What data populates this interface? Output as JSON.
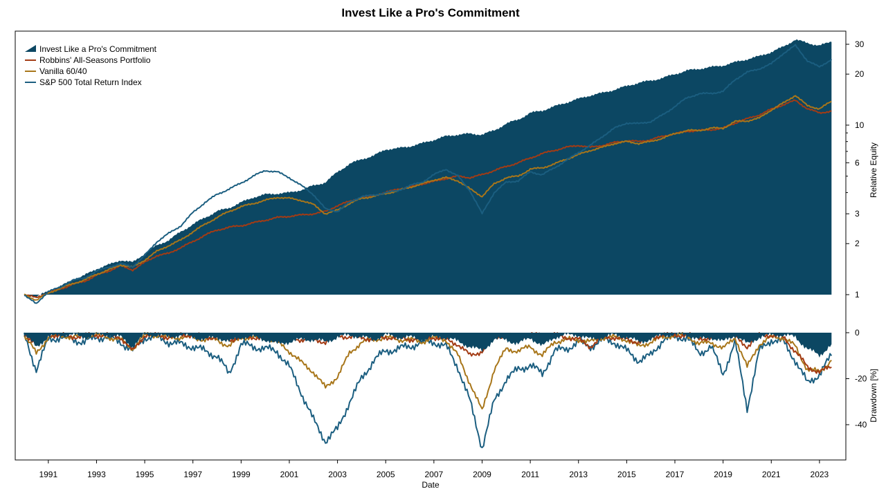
{
  "title": "Invest Like a Pro's Commitment",
  "colors": {
    "commitment": "#0c4763",
    "robbins": "#a33b14",
    "vanilla": "#a8761a",
    "sp500": "#1b5e80"
  },
  "chart_data": [
    {
      "type": "area",
      "title": "Invest Like a Pro's Commitment",
      "xlabel": "Date",
      "ylabel": "Relative Equity",
      "yscale": "log",
      "ylim": [
        0.8,
        34
      ],
      "xlim": [
        1990.0,
        2023.75
      ],
      "legend_position": "top-left",
      "grid": false,
      "x_ticks": [
        "1991",
        "1993",
        "1995",
        "1997",
        "1999",
        "2001",
        "2003",
        "2005",
        "2007",
        "2009",
        "2011",
        "2013",
        "2015",
        "2017",
        "2019",
        "2021",
        "2023"
      ],
      "y_ticks": [
        "1",
        "2",
        "3",
        "6",
        "10",
        "20",
        "30"
      ],
      "x": [
        1990.0,
        1990.5,
        1991.0,
        1991.5,
        1992.0,
        1992.5,
        1993.0,
        1993.5,
        1994.0,
        1994.5,
        1995.0,
        1995.5,
        1996.0,
        1996.5,
        1997.0,
        1997.5,
        1998.0,
        1998.5,
        1999.0,
        1999.5,
        2000.0,
        2000.5,
        2001.0,
        2001.5,
        2002.0,
        2002.5,
        2003.0,
        2003.5,
        2004.0,
        2004.5,
        2005.0,
        2005.5,
        2006.0,
        2006.5,
        2007.0,
        2007.5,
        2008.0,
        2008.5,
        2009.0,
        2009.5,
        2010.0,
        2010.5,
        2011.0,
        2011.5,
        2012.0,
        2012.5,
        2013.0,
        2013.5,
        2014.0,
        2014.5,
        2015.0,
        2015.5,
        2016.0,
        2016.5,
        2017.0,
        2017.5,
        2018.0,
        2018.5,
        2019.0,
        2019.5,
        2020.0,
        2020.5,
        2021.0,
        2021.5,
        2022.0,
        2022.5,
        2023.0,
        2023.5
      ],
      "series": [
        {
          "name": "Invest Like a Pro's Commitment",
          "values": [
            1.0,
            0.97,
            1.05,
            1.12,
            1.22,
            1.3,
            1.42,
            1.5,
            1.6,
            1.55,
            1.75,
            1.95,
            2.1,
            2.35,
            2.6,
            2.85,
            3.1,
            3.25,
            3.5,
            3.75,
            3.9,
            3.95,
            4.0,
            4.15,
            4.4,
            4.6,
            5.3,
            5.9,
            6.3,
            6.6,
            7.2,
            7.3,
            7.5,
            7.8,
            8.2,
            8.6,
            8.8,
            8.9,
            8.8,
            9.3,
            10.2,
            10.8,
            11.8,
            12.2,
            12.9,
            13.6,
            14.3,
            15.0,
            15.5,
            16.2,
            17.0,
            17.8,
            18.3,
            19.0,
            20.0,
            21.0,
            21.5,
            22.0,
            22.5,
            23.5,
            24.5,
            25.5,
            27.0,
            29.0,
            32.0,
            30.5,
            29.5,
            31.0
          ]
        },
        {
          "name": "Robbins' All-Seasons Portfolio",
          "values": [
            1.0,
            0.96,
            1.03,
            1.08,
            1.15,
            1.2,
            1.3,
            1.38,
            1.48,
            1.4,
            1.55,
            1.7,
            1.75,
            1.9,
            2.05,
            2.25,
            2.4,
            2.5,
            2.55,
            2.65,
            2.75,
            2.85,
            2.9,
            2.95,
            3.0,
            3.1,
            3.35,
            3.55,
            3.75,
            3.85,
            4.0,
            4.2,
            4.3,
            4.5,
            4.65,
            4.85,
            5.0,
            4.9,
            5.1,
            5.4,
            5.7,
            6.0,
            6.4,
            6.8,
            7.1,
            7.4,
            7.6,
            7.4,
            7.6,
            7.9,
            8.1,
            8.0,
            8.2,
            8.6,
            8.9,
            9.2,
            9.3,
            9.4,
            9.6,
            10.3,
            10.9,
            11.5,
            12.4,
            13.2,
            14.0,
            12.5,
            11.8,
            12.1
          ]
        },
        {
          "name": "Vanilla 60/40",
          "values": [
            1.0,
            0.93,
            1.02,
            1.09,
            1.16,
            1.22,
            1.32,
            1.4,
            1.5,
            1.45,
            1.6,
            1.8,
            1.95,
            2.1,
            2.35,
            2.6,
            2.85,
            3.1,
            3.3,
            3.45,
            3.6,
            3.75,
            3.7,
            3.6,
            3.4,
            3.0,
            3.15,
            3.45,
            3.7,
            3.8,
            3.95,
            4.1,
            4.3,
            4.5,
            4.75,
            4.9,
            4.7,
            4.2,
            3.8,
            4.5,
            4.9,
            5.0,
            5.5,
            5.6,
            5.9,
            6.3,
            6.7,
            7.1,
            7.4,
            7.8,
            8.0,
            7.8,
            8.0,
            8.4,
            8.9,
            9.3,
            9.3,
            9.6,
            9.6,
            10.5,
            10.6,
            11.0,
            12.3,
            13.5,
            15.0,
            13.0,
            12.5,
            13.8
          ]
        },
        {
          "name": "S&P 500 Total Return Index",
          "values": [
            1.0,
            0.88,
            1.05,
            1.1,
            1.22,
            1.25,
            1.38,
            1.45,
            1.52,
            1.46,
            1.7,
            2.05,
            2.3,
            2.55,
            3.05,
            3.5,
            3.9,
            4.2,
            4.55,
            5.0,
            5.4,
            5.3,
            4.9,
            4.4,
            3.9,
            3.2,
            3.1,
            3.5,
            3.8,
            3.85,
            4.0,
            4.1,
            4.4,
            4.6,
            5.1,
            5.5,
            5.0,
            4.1,
            3.0,
            4.0,
            4.6,
            4.7,
            5.3,
            5.1,
            5.6,
            6.2,
            6.9,
            7.6,
            8.6,
            9.6,
            10.3,
            10.2,
            10.5,
            11.5,
            12.9,
            14.5,
            15.3,
            15.4,
            15.8,
            18.6,
            20.5,
            21.5,
            23.0,
            26.5,
            29.5,
            24.0,
            22.0,
            24.5
          ]
        }
      ]
    },
    {
      "type": "area",
      "xlabel": "Date",
      "ylabel": "Drawdown [%]",
      "ylim": [
        -55,
        0
      ],
      "y_ticks": [
        "0",
        "-20",
        "-40"
      ],
      "x": [
        1990.0,
        1990.5,
        1991.0,
        1991.5,
        1992.0,
        1992.5,
        1993.0,
        1993.5,
        1994.0,
        1994.5,
        1995.0,
        1995.5,
        1996.0,
        1996.5,
        1997.0,
        1997.5,
        1998.0,
        1998.5,
        1999.0,
        1999.5,
        2000.0,
        2000.5,
        2001.0,
        2001.5,
        2002.0,
        2002.5,
        2003.0,
        2003.5,
        2004.0,
        2004.5,
        2005.0,
        2005.5,
        2006.0,
        2006.5,
        2007.0,
        2007.5,
        2008.0,
        2008.5,
        2009.0,
        2009.5,
        2010.0,
        2010.5,
        2011.0,
        2011.5,
        2012.0,
        2012.5,
        2013.0,
        2013.5,
        2014.0,
        2014.5,
        2015.0,
        2015.5,
        2016.0,
        2016.5,
        2017.0,
        2017.5,
        2018.0,
        2018.5,
        2019.0,
        2019.5,
        2020.0,
        2020.5,
        2021.0,
        2021.5,
        2022.0,
        2022.5,
        2023.0,
        2023.5
      ],
      "series": [
        {
          "name": "Invest Like a Pro's Commitment",
          "values": [
            -1,
            -6,
            -2,
            -1,
            -1,
            -2,
            -1,
            -1,
            -2,
            -6,
            -1,
            -1,
            -2,
            -1,
            -2,
            -3,
            -2,
            -4,
            -2,
            -2,
            -3,
            -5,
            -4,
            -3,
            -3,
            -4,
            -2,
            -1,
            -2,
            -3,
            -1,
            -2,
            -2,
            -3,
            -2,
            -2,
            -4,
            -6,
            -8,
            -3,
            -3,
            -5,
            -2,
            -6,
            -2,
            -1,
            -1,
            -3,
            -2,
            -1,
            -2,
            -4,
            -3,
            -1,
            -1,
            -1,
            -3,
            -2,
            -4,
            -1,
            -5,
            -2,
            -1,
            -1,
            -2,
            -7,
            -10,
            -5
          ]
        },
        {
          "name": "Robbins' All-Seasons Portfolio",
          "values": [
            -1,
            -4,
            -1,
            -1,
            -2,
            -1,
            -1,
            -1,
            -2,
            -8,
            -1,
            -1,
            -2,
            -1,
            -1,
            -2,
            -2,
            -3,
            -2,
            -2,
            -2,
            -3,
            -2,
            -3,
            -3,
            -4,
            -1,
            -2,
            -2,
            -3,
            -2,
            -2,
            -3,
            -2,
            -2,
            -3,
            -5,
            -10,
            -8,
            -2,
            -1,
            -2,
            -1,
            -1,
            -1,
            -2,
            -3,
            -6,
            -2,
            -2,
            -3,
            -4,
            -2,
            -1,
            -1,
            -1,
            -2,
            -3,
            -1,
            -2,
            -6,
            -1,
            -1,
            -2,
            -8,
            -15,
            -17,
            -15
          ]
        },
        {
          "name": "Vanilla 60/40",
          "values": [
            -1,
            -9,
            -2,
            -1,
            -2,
            -1,
            -1,
            -2,
            -3,
            -7,
            -1,
            -1,
            -2,
            -2,
            -2,
            -3,
            -3,
            -6,
            -2,
            -2,
            -2,
            -4,
            -8,
            -13,
            -17,
            -24,
            -19,
            -9,
            -4,
            -3,
            -2,
            -3,
            -3,
            -4,
            -2,
            -3,
            -10,
            -22,
            -34,
            -16,
            -7,
            -8,
            -6,
            -10,
            -4,
            -3,
            -3,
            -4,
            -2,
            -2,
            -3,
            -6,
            -4,
            -2,
            -1,
            -1,
            -5,
            -4,
            -7,
            -2,
            -15,
            -5,
            -2,
            -2,
            -6,
            -16,
            -17,
            -12
          ]
        },
        {
          "name": "S&P 500 Total Return Index",
          "values": [
            -1,
            -16,
            -3,
            -2,
            -3,
            -4,
            -2,
            -2,
            -4,
            -8,
            -2,
            -2,
            -4,
            -5,
            -6,
            -8,
            -10,
            -18,
            -5,
            -6,
            -7,
            -8,
            -15,
            -26,
            -38,
            -47,
            -42,
            -30,
            -20,
            -12,
            -8,
            -7,
            -6,
            -4,
            -4,
            -6,
            -15,
            -30,
            -50,
            -30,
            -20,
            -16,
            -14,
            -18,
            -8,
            -7,
            -4,
            -6,
            -3,
            -4,
            -8,
            -12,
            -10,
            -3,
            -2,
            -2,
            -9,
            -6,
            -18,
            -4,
            -33,
            -8,
            -3,
            -4,
            -12,
            -22,
            -18,
            -10
          ]
        }
      ]
    }
  ]
}
